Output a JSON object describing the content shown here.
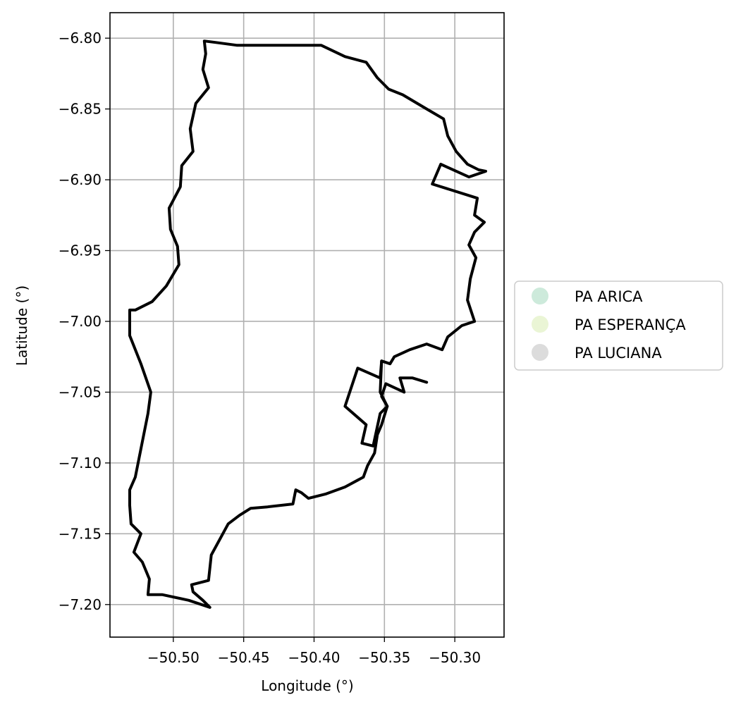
{
  "chart_data": {
    "type": "map",
    "xlabel": "Longitude (°)",
    "ylabel": "Latitude (°)",
    "xlim": [
      -50.545,
      -50.265
    ],
    "ylim": [
      -7.223,
      -6.782
    ],
    "x_ticks": [
      -50.5,
      -50.45,
      -50.4,
      -50.35,
      -50.3
    ],
    "x_tick_labels": [
      "−50.50",
      "−50.45",
      "−50.40",
      "−50.35",
      "−50.30"
    ],
    "y_ticks": [
      -6.8,
      -6.85,
      -6.9,
      -6.95,
      -7.0,
      -7.05,
      -7.1,
      -7.15,
      -7.2
    ],
    "y_tick_labels": [
      "−6.80",
      "−6.85",
      "−6.90",
      "−6.95",
      "−7.00",
      "−7.05",
      "−7.10",
      "−7.15",
      "−7.20"
    ],
    "grid": true,
    "legend_position": "right",
    "legend": [
      {
        "label": "PA ARICA",
        "color": "#cdeadb"
      },
      {
        "label": "PA ESPERANÇA",
        "color": "#eaf5d5"
      },
      {
        "label": "PA LUCIANA",
        "color": "#dcdcdc"
      }
    ],
    "boundary_color": "#000000",
    "outer_boundary": [
      [
        -50.478,
        -6.802
      ],
      [
        -50.47,
        -6.803
      ],
      [
        -50.455,
        -6.805
      ],
      [
        -50.42,
        -6.805
      ],
      [
        -50.395,
        -6.805
      ],
      [
        -50.378,
        -6.813
      ],
      [
        -50.363,
        -6.817
      ],
      [
        -50.355,
        -6.828
      ],
      [
        -50.347,
        -6.836
      ],
      [
        -50.337,
        -6.84
      ],
      [
        -50.32,
        -6.85
      ],
      [
        -50.308,
        -6.857
      ],
      [
        -50.305,
        -6.869
      ],
      [
        -50.299,
        -6.88
      ],
      [
        -50.291,
        -6.889
      ],
      [
        -50.283,
        -6.893
      ],
      [
        -50.278,
        -6.894
      ],
      [
        -50.29,
        -6.898
      ],
      [
        -50.31,
        -6.889
      ],
      [
        -50.316,
        -6.903
      ],
      [
        -50.284,
        -6.913
      ],
      [
        -50.286,
        -6.925
      ],
      [
        -50.279,
        -6.93
      ],
      [
        -50.286,
        -6.937
      ],
      [
        -50.29,
        -6.946
      ],
      [
        -50.285,
        -6.955
      ],
      [
        -50.289,
        -6.97
      ],
      [
        -50.291,
        -6.985
      ],
      [
        -50.286,
        -7.0
      ],
      [
        -50.295,
        -7.003
      ],
      [
        -50.305,
        -7.011
      ],
      [
        -50.309,
        -7.02
      ],
      [
        -50.32,
        -7.016
      ],
      [
        -50.332,
        -7.02
      ],
      [
        -50.343,
        -7.025
      ],
      [
        -50.346,
        -7.03
      ],
      [
        -50.352,
        -7.028
      ],
      [
        -50.353,
        -7.05
      ],
      [
        -50.348,
        -7.06
      ],
      [
        -50.352,
        -7.073
      ],
      [
        -50.355,
        -7.08
      ],
      [
        -50.357,
        -7.093
      ],
      [
        -50.362,
        -7.102
      ],
      [
        -50.365,
        -7.11
      ],
      [
        -50.378,
        -7.117
      ],
      [
        -50.392,
        -7.122
      ],
      [
        -50.404,
        -7.125
      ],
      [
        -50.409,
        -7.121
      ],
      [
        -50.413,
        -7.119
      ],
      [
        -50.415,
        -7.129
      ],
      [
        -50.433,
        -7.131
      ],
      [
        -50.445,
        -7.132
      ],
      [
        -50.453,
        -7.137
      ],
      [
        -50.461,
        -7.143
      ],
      [
        -50.473,
        -7.165
      ],
      [
        -50.475,
        -7.183
      ],
      [
        -50.487,
        -7.186
      ],
      [
        -50.486,
        -7.191
      ],
      [
        -50.479,
        -7.197
      ],
      [
        -50.474,
        -7.202
      ],
      [
        -50.489,
        -7.197
      ],
      [
        -50.508,
        -7.193
      ],
      [
        -50.518,
        -7.193
      ],
      [
        -50.517,
        -7.182
      ],
      [
        -50.522,
        -7.17
      ],
      [
        -50.528,
        -7.163
      ],
      [
        -50.523,
        -7.15
      ],
      [
        -50.53,
        -7.143
      ],
      [
        -50.531,
        -7.13
      ],
      [
        -50.531,
        -7.119
      ],
      [
        -50.527,
        -7.11
      ],
      [
        -50.523,
        -7.09
      ],
      [
        -50.518,
        -7.065
      ],
      [
        -50.516,
        -7.05
      ],
      [
        -50.523,
        -7.03
      ],
      [
        -50.531,
        -7.01
      ],
      [
        -50.531,
        -6.992
      ],
      [
        -50.527,
        -6.992
      ],
      [
        -50.515,
        -6.986
      ],
      [
        -50.505,
        -6.975
      ],
      [
        -50.496,
        -6.96
      ],
      [
        -50.497,
        -6.947
      ],
      [
        -50.502,
        -6.935
      ],
      [
        -50.503,
        -6.92
      ],
      [
        -50.495,
        -6.905
      ],
      [
        -50.494,
        -6.89
      ],
      [
        -50.486,
        -6.88
      ],
      [
        -50.488,
        -6.864
      ],
      [
        -50.484,
        -6.846
      ],
      [
        -50.475,
        -6.835
      ],
      [
        -50.479,
        -6.822
      ],
      [
        -50.477,
        -6.811
      ],
      [
        -50.478,
        -6.802
      ]
    ],
    "parcel_boundary": [
      [
        -50.352,
        -7.028
      ],
      [
        -50.353,
        -7.04
      ],
      [
        -50.369,
        -7.033
      ],
      [
        -50.378,
        -7.06
      ],
      [
        -50.363,
        -7.073
      ],
      [
        -50.366,
        -7.086
      ],
      [
        -50.358,
        -7.088
      ],
      [
        -50.353,
        -7.065
      ],
      [
        -50.348,
        -7.06
      ],
      [
        -50.352,
        -7.053
      ],
      [
        -50.349,
        -7.044
      ],
      [
        -50.336,
        -7.05
      ],
      [
        -50.339,
        -7.04
      ],
      [
        -50.33,
        -7.04
      ],
      [
        -50.32,
        -7.043
      ]
    ]
  }
}
